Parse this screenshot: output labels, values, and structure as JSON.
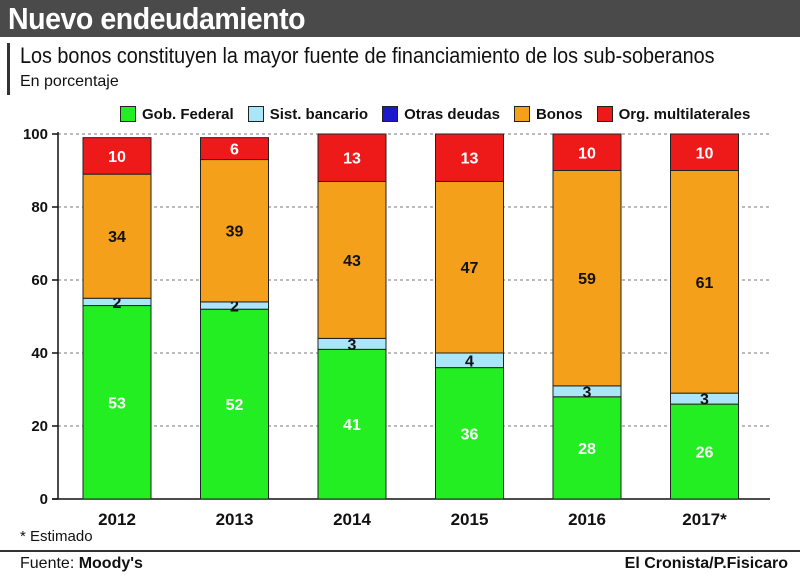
{
  "header": {
    "title": "Nuevo endeudamiento",
    "subtitle": "Los bonos constituyen la mayor fuente de financiamiento de los sub-soberanos",
    "units": "En porcentaje"
  },
  "legend": [
    {
      "label": "Gob. Federal",
      "color": "#22ee22"
    },
    {
      "label": "Sist. bancario",
      "color": "#a8e6f8"
    },
    {
      "label": "Otras deudas",
      "color": "#1a1acc"
    },
    {
      "label": "Bonos",
      "color": "#f5a01a"
    },
    {
      "label": "Org. multilaterales",
      "color": "#ee1a1a"
    }
  ],
  "chart_data": {
    "type": "bar",
    "stacked": true,
    "categories": [
      "2012",
      "2013",
      "2014",
      "2015",
      "2016",
      "2017*"
    ],
    "series": [
      {
        "name": "Gob. Federal",
        "values": [
          53,
          52,
          41,
          36,
          28,
          26
        ],
        "labels": [
          "53",
          "52",
          "41",
          "36",
          "28",
          "26"
        ],
        "label_color": "#ffffff"
      },
      {
        "name": "Sist. bancario",
        "values": [
          2,
          2,
          3,
          4,
          3,
          3
        ],
        "labels": [
          "2",
          "2",
          "3",
          "4",
          "3",
          "3"
        ],
        "label_color": "#111111"
      },
      {
        "name": "Otras deudas",
        "values": [
          0,
          0,
          0,
          0,
          0,
          0
        ],
        "labels": [
          "",
          "",
          "",
          "",
          "",
          ""
        ],
        "label_color": "#ffffff"
      },
      {
        "name": "Bonos",
        "values": [
          34,
          39,
          43,
          47,
          59,
          61
        ],
        "labels": [
          "34",
          "39",
          "43",
          "47",
          "59",
          "61"
        ],
        "label_color": "#111111"
      },
      {
        "name": "Org. multilaterales",
        "values": [
          10,
          6,
          13,
          13,
          10,
          10
        ],
        "labels": [
          "10",
          "6",
          "13",
          "13",
          "10",
          "10"
        ],
        "label_color": "#ffffff"
      }
    ],
    "y_ticks": [
      0,
      20,
      40,
      60,
      80,
      100
    ],
    "ylim": [
      0,
      100
    ],
    "xlabel": "",
    "ylabel": "",
    "grid": true,
    "legend_position": "top"
  },
  "footer": {
    "note": "* Estimado",
    "source_prefix": "Fuente: ",
    "source_name": "Moody's",
    "credit": "El Cronista/P.Fisicaro"
  }
}
